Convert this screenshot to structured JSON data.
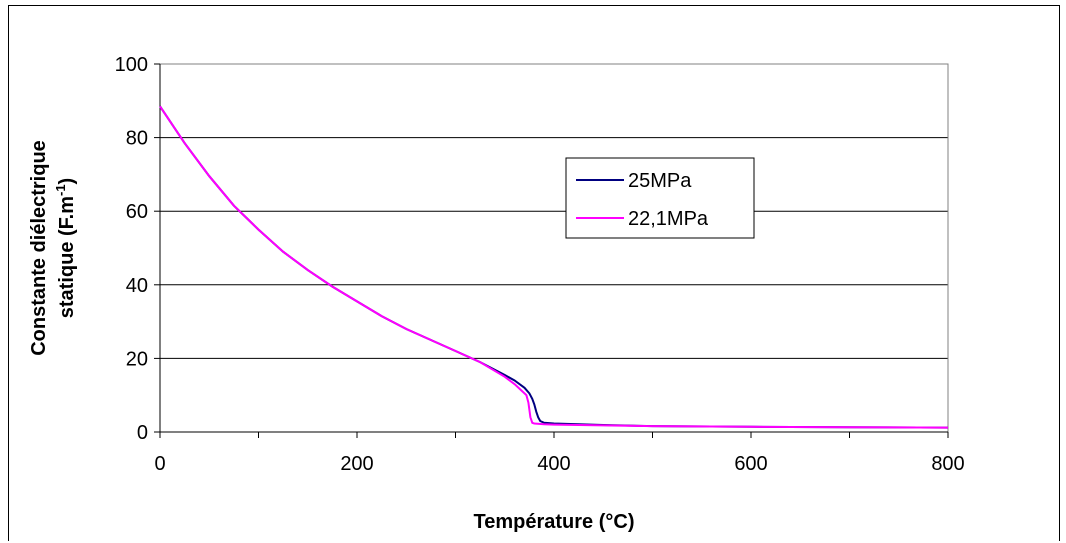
{
  "chart_data": {
    "type": "line",
    "xlabel": "Température (°C)",
    "ylabel_line1": "Constante diélectrique",
    "ylabel_line2_prefix": "statique (F.m",
    "ylabel_line2_sup": "-1",
    "ylabel_line2_suffix": ")",
    "xlim": [
      0,
      800
    ],
    "ylim": [
      0,
      100
    ],
    "xticks": [
      0,
      200,
      400,
      600,
      800
    ],
    "yticks": [
      0,
      20,
      40,
      60,
      80,
      100
    ],
    "grid": "horizontal",
    "legend_position": "right-center",
    "series": [
      {
        "name": "25MPa",
        "color": "#000080",
        "x": [
          0,
          25,
          50,
          75,
          100,
          125,
          150,
          175,
          200,
          225,
          250,
          275,
          300,
          325,
          350,
          360,
          370,
          375,
          378,
          380,
          382,
          384,
          386,
          390,
          400,
          450,
          500,
          600,
          700,
          800
        ],
        "y": [
          88.5,
          78.5,
          69.5,
          61.5,
          55,
          49,
          44,
          39.5,
          35.5,
          31.5,
          28,
          25,
          22,
          19,
          15.5,
          14,
          12,
          10.5,
          9,
          7.5,
          5.5,
          4,
          3,
          2.5,
          2.3,
          1.9,
          1.6,
          1.4,
          1.3,
          1.2
        ]
      },
      {
        "name": "22,1MPa",
        "color": "#ff00ff",
        "x": [
          0,
          25,
          50,
          75,
          100,
          125,
          150,
          175,
          200,
          225,
          250,
          275,
          300,
          325,
          350,
          360,
          368,
          372,
          374,
          376,
          378,
          380,
          390,
          400,
          450,
          500,
          600,
          700,
          800
        ],
        "y": [
          88.5,
          78.5,
          69.5,
          61.5,
          55,
          49,
          44,
          39.5,
          35.5,
          31.5,
          28,
          25,
          22,
          19,
          15,
          13,
          11,
          10,
          8,
          4,
          2.5,
          2.3,
          2.1,
          2,
          1.8,
          1.6,
          1.4,
          1.3,
          1.2
        ]
      }
    ]
  }
}
